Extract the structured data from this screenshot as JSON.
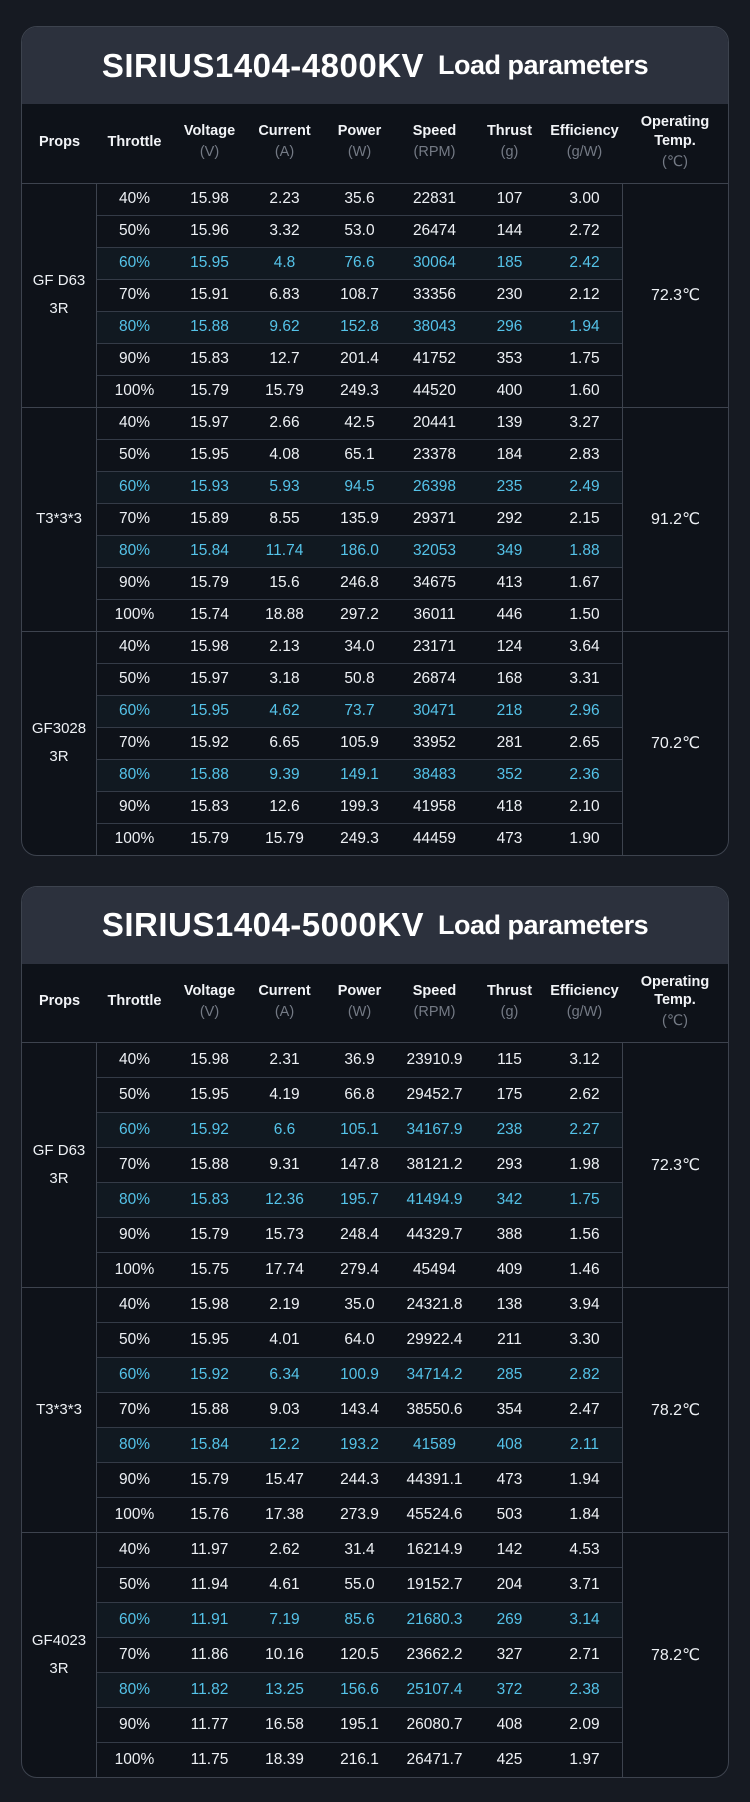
{
  "colors": {
    "page_background": "#161a22",
    "card_background": "#0e1219",
    "title_bar": "#2c313d",
    "divider": "#3d434e",
    "text": "#eef1f5",
    "unit_text": "#747a85",
    "highlight_text": "#55c3e9"
  },
  "tables": [
    {
      "model": "SIRIUS1404-4800KV",
      "subtitle": "Load parameters",
      "columns": [
        {
          "label": "Props",
          "unit": ""
        },
        {
          "label": "Throttle",
          "unit": ""
        },
        {
          "label": "Voltage",
          "unit": "(V)"
        },
        {
          "label": "Current",
          "unit": "(A)"
        },
        {
          "label": "Power",
          "unit": "(W)"
        },
        {
          "label": "Speed",
          "unit": "(RPM)"
        },
        {
          "label": "Thrust",
          "unit": "(g)"
        },
        {
          "label": "Efficiency",
          "unit": "(g/W)"
        },
        {
          "label": "Operating Temp.",
          "unit": "(℃)"
        }
      ],
      "groups": [
        {
          "prop_lines": [
            "GF D63",
            "3R"
          ],
          "temp": "72.3℃",
          "rows": [
            {
              "throttle": "40%",
              "values": [
                "15.98",
                "2.23",
                "35.6",
                "22831",
                "107",
                "3.00"
              ],
              "highlight": false
            },
            {
              "throttle": "50%",
              "values": [
                "15.96",
                "3.32",
                "53.0",
                "26474",
                "144",
                "2.72"
              ],
              "highlight": false
            },
            {
              "throttle": "60%",
              "values": [
                "15.95",
                "4.8",
                "76.6",
                "30064",
                "185",
                "2.42"
              ],
              "highlight": true
            },
            {
              "throttle": "70%",
              "values": [
                "15.91",
                "6.83",
                "108.7",
                "33356",
                "230",
                "2.12"
              ],
              "highlight": false
            },
            {
              "throttle": "80%",
              "values": [
                "15.88",
                "9.62",
                "152.8",
                "38043",
                "296",
                "1.94"
              ],
              "highlight": true
            },
            {
              "throttle": "90%",
              "values": [
                "15.83",
                "12.7",
                "201.4",
                "41752",
                "353",
                "1.75"
              ],
              "highlight": false
            },
            {
              "throttle": "100%",
              "values": [
                "15.79",
                "15.79",
                "249.3",
                "44520",
                "400",
                "1.60"
              ],
              "highlight": false
            }
          ]
        },
        {
          "prop_lines": [
            "T3*3*3"
          ],
          "temp": "91.2℃",
          "rows": [
            {
              "throttle": "40%",
              "values": [
                "15.97",
                "2.66",
                "42.5",
                "20441",
                "139",
                "3.27"
              ],
              "highlight": false
            },
            {
              "throttle": "50%",
              "values": [
                "15.95",
                "4.08",
                "65.1",
                "23378",
                "184",
                "2.83"
              ],
              "highlight": false
            },
            {
              "throttle": "60%",
              "values": [
                "15.93",
                "5.93",
                "94.5",
                "26398",
                "235",
                "2.49"
              ],
              "highlight": true
            },
            {
              "throttle": "70%",
              "values": [
                "15.89",
                "8.55",
                "135.9",
                "29371",
                "292",
                "2.15"
              ],
              "highlight": false
            },
            {
              "throttle": "80%",
              "values": [
                "15.84",
                "11.74",
                "186.0",
                "32053",
                "349",
                "1.88"
              ],
              "highlight": true
            },
            {
              "throttle": "90%",
              "values": [
                "15.79",
                "15.6",
                "246.8",
                "34675",
                "413",
                "1.67"
              ],
              "highlight": false
            },
            {
              "throttle": "100%",
              "values": [
                "15.74",
                "18.88",
                "297.2",
                "36011",
                "446",
                "1.50"
              ],
              "highlight": false
            }
          ]
        },
        {
          "prop_lines": [
            "GF3028",
            "3R"
          ],
          "temp": "70.2℃",
          "rows": [
            {
              "throttle": "40%",
              "values": [
                "15.98",
                "2.13",
                "34.0",
                "23171",
                "124",
                "3.64"
              ],
              "highlight": false
            },
            {
              "throttle": "50%",
              "values": [
                "15.97",
                "3.18",
                "50.8",
                "26874",
                "168",
                "3.31"
              ],
              "highlight": false
            },
            {
              "throttle": "60%",
              "values": [
                "15.95",
                "4.62",
                "73.7",
                "30471",
                "218",
                "2.96"
              ],
              "highlight": true
            },
            {
              "throttle": "70%",
              "values": [
                "15.92",
                "6.65",
                "105.9",
                "33952",
                "281",
                "2.65"
              ],
              "highlight": false
            },
            {
              "throttle": "80%",
              "values": [
                "15.88",
                "9.39",
                "149.1",
                "38483",
                "352",
                "2.36"
              ],
              "highlight": true
            },
            {
              "throttle": "90%",
              "values": [
                "15.83",
                "12.6",
                "199.3",
                "41958",
                "418",
                "2.10"
              ],
              "highlight": false
            },
            {
              "throttle": "100%",
              "values": [
                "15.79",
                "15.79",
                "249.3",
                "44459",
                "473",
                "1.90"
              ],
              "highlight": false
            }
          ]
        }
      ]
    },
    {
      "model": "SIRIUS1404-5000KV",
      "subtitle": "Load parameters",
      "columns": [
        {
          "label": "Props",
          "unit": ""
        },
        {
          "label": "Throttle",
          "unit": ""
        },
        {
          "label": "Voltage",
          "unit": "(V)"
        },
        {
          "label": "Current",
          "unit": "(A)"
        },
        {
          "label": "Power",
          "unit": "(W)"
        },
        {
          "label": "Speed",
          "unit": "(RPM)"
        },
        {
          "label": "Thrust",
          "unit": "(g)"
        },
        {
          "label": "Efficiency",
          "unit": "(g/W)"
        },
        {
          "label": "Operating Temp.",
          "unit": "(℃)"
        }
      ],
      "groups": [
        {
          "prop_lines": [
            "GF D63",
            "3R"
          ],
          "temp": "72.3℃",
          "rows": [
            {
              "throttle": "40%",
              "values": [
                "15.98",
                "2.31",
                "36.9",
                "23910.9",
                "115",
                "3.12"
              ],
              "highlight": false
            },
            {
              "throttle": "50%",
              "values": [
                "15.95",
                "4.19",
                "66.8",
                "29452.7",
                "175",
                "2.62"
              ],
              "highlight": false
            },
            {
              "throttle": "60%",
              "values": [
                "15.92",
                "6.6",
                "105.1",
                "34167.9",
                "238",
                "2.27"
              ],
              "highlight": true
            },
            {
              "throttle": "70%",
              "values": [
                "15.88",
                "9.31",
                "147.8",
                "38121.2",
                "293",
                "1.98"
              ],
              "highlight": false
            },
            {
              "throttle": "80%",
              "values": [
                "15.83",
                "12.36",
                "195.7",
                "41494.9",
                "342",
                "1.75"
              ],
              "highlight": true
            },
            {
              "throttle": "90%",
              "values": [
                "15.79",
                "15.73",
                "248.4",
                "44329.7",
                "388",
                "1.56"
              ],
              "highlight": false
            },
            {
              "throttle": "100%",
              "values": [
                "15.75",
                "17.74",
                "279.4",
                "45494",
                "409",
                "1.46"
              ],
              "highlight": false
            }
          ]
        },
        {
          "prop_lines": [
            "T3*3*3"
          ],
          "temp": "78.2℃",
          "rows": [
            {
              "throttle": "40%",
              "values": [
                "15.98",
                "2.19",
                "35.0",
                "24321.8",
                "138",
                "3.94"
              ],
              "highlight": false
            },
            {
              "throttle": "50%",
              "values": [
                "15.95",
                "4.01",
                "64.0",
                "29922.4",
                "211",
                "3.30"
              ],
              "highlight": false
            },
            {
              "throttle": "60%",
              "values": [
                "15.92",
                "6.34",
                "100.9",
                "34714.2",
                "285",
                "2.82"
              ],
              "highlight": true
            },
            {
              "throttle": "70%",
              "values": [
                "15.88",
                "9.03",
                "143.4",
                "38550.6",
                "354",
                "2.47"
              ],
              "highlight": false
            },
            {
              "throttle": "80%",
              "values": [
                "15.84",
                "12.2",
                "193.2",
                "41589",
                "408",
                "2.11"
              ],
              "highlight": true
            },
            {
              "throttle": "90%",
              "values": [
                "15.79",
                "15.47",
                "244.3",
                "44391.1",
                "473",
                "1.94"
              ],
              "highlight": false
            },
            {
              "throttle": "100%",
              "values": [
                "15.76",
                "17.38",
                "273.9",
                "45524.6",
                "503",
                "1.84"
              ],
              "highlight": false
            }
          ]
        },
        {
          "prop_lines": [
            "GF4023",
            "3R"
          ],
          "temp": "78.2℃",
          "rows": [
            {
              "throttle": "40%",
              "values": [
                "11.97",
                "2.62",
                "31.4",
                "16214.9",
                "142",
                "4.53"
              ],
              "highlight": false
            },
            {
              "throttle": "50%",
              "values": [
                "11.94",
                "4.61",
                "55.0",
                "19152.7",
                "204",
                "3.71"
              ],
              "highlight": false
            },
            {
              "throttle": "60%",
              "values": [
                "11.91",
                "7.19",
                "85.6",
                "21680.3",
                "269",
                "3.14"
              ],
              "highlight": true
            },
            {
              "throttle": "70%",
              "values": [
                "11.86",
                "10.16",
                "120.5",
                "23662.2",
                "327",
                "2.71"
              ],
              "highlight": false
            },
            {
              "throttle": "80%",
              "values": [
                "11.82",
                "13.25",
                "156.6",
                "25107.4",
                "372",
                "2.38"
              ],
              "highlight": true
            },
            {
              "throttle": "90%",
              "values": [
                "11.77",
                "16.58",
                "195.1",
                "26080.7",
                "408",
                "2.09"
              ],
              "highlight": false
            },
            {
              "throttle": "100%",
              "values": [
                "11.75",
                "18.39",
                "216.1",
                "26471.7",
                "425",
                "1.97"
              ],
              "highlight": false
            }
          ]
        }
      ]
    }
  ]
}
